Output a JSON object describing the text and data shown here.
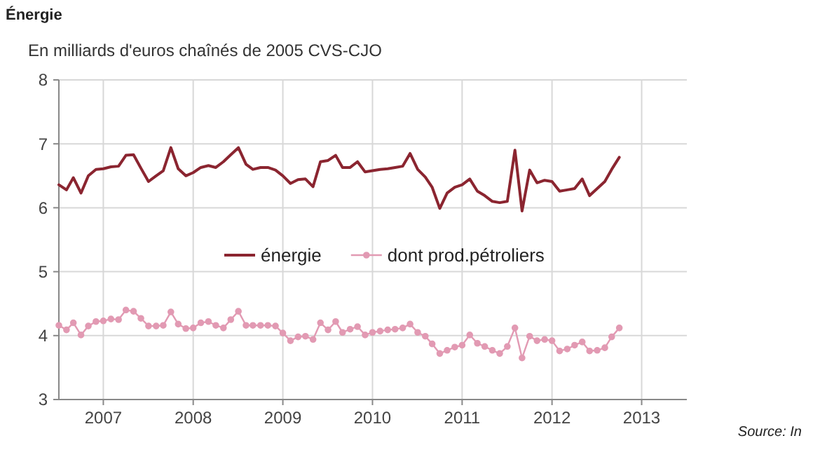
{
  "chart_data": {
    "type": "line",
    "title": "Énergie",
    "subtitle": "En milliards d'euros chaînés de 2005 CVS-CJO",
    "annotations": [
      "Source: In"
    ],
    "x": [
      "2007-01",
      "2007-02",
      "2007-03",
      "2007-04",
      "2007-05",
      "2007-06",
      "2007-07",
      "2007-08",
      "2007-09",
      "2007-10",
      "2007-11",
      "2007-12",
      "2008-01",
      "2008-02",
      "2008-03",
      "2008-04",
      "2008-05",
      "2008-06",
      "2008-07",
      "2008-08",
      "2008-09",
      "2008-10",
      "2008-11",
      "2008-12",
      "2009-01",
      "2009-02",
      "2009-03",
      "2009-04",
      "2009-05",
      "2009-06",
      "2009-07",
      "2009-08",
      "2009-09",
      "2009-10",
      "2009-11",
      "2009-12",
      "2010-01",
      "2010-02",
      "2010-03",
      "2010-04",
      "2010-05",
      "2010-06",
      "2010-07",
      "2010-08",
      "2010-09",
      "2010-10",
      "2010-11",
      "2010-12",
      "2011-01",
      "2011-02",
      "2011-03",
      "2011-04",
      "2011-05",
      "2011-06",
      "2011-07",
      "2011-08",
      "2011-09",
      "2011-10",
      "2011-11",
      "2011-12",
      "2012-01",
      "2012-02",
      "2012-03",
      "2012-04",
      "2012-05",
      "2012-06",
      "2012-07",
      "2012-08",
      "2012-09",
      "2012-10",
      "2012-11",
      "2012-12",
      "2013-01",
      "2013-02",
      "2013-03",
      "2013-04"
    ],
    "series": [
      {
        "name": "énergie",
        "color": "#8b2530",
        "marker": "none",
        "values": [
          6.36,
          6.28,
          6.47,
          6.23,
          6.5,
          6.6,
          6.61,
          6.64,
          6.65,
          6.82,
          6.83,
          6.62,
          6.41,
          6.5,
          6.58,
          6.94,
          6.61,
          6.5,
          6.55,
          6.63,
          6.66,
          6.63,
          6.72,
          6.83,
          6.94,
          6.68,
          6.6,
          6.63,
          6.63,
          6.59,
          6.5,
          6.38,
          6.44,
          6.45,
          6.33,
          6.72,
          6.74,
          6.82,
          6.63,
          6.63,
          6.72,
          6.56,
          6.58,
          6.6,
          6.61,
          6.63,
          6.65,
          6.85,
          6.6,
          6.48,
          6.32,
          5.99,
          6.23,
          6.32,
          6.36,
          6.45,
          6.26,
          6.19,
          6.1,
          6.08,
          6.1,
          6.9,
          5.95,
          6.59,
          6.39,
          6.43,
          6.41,
          6.26,
          6.28,
          6.3,
          6.45,
          6.19,
          6.3,
          6.41,
          6.6,
          6.79
        ]
      },
      {
        "name": "dont prod.pétroliers",
        "color": "#e29ab3",
        "marker": "circle",
        "values": [
          4.16,
          4.09,
          4.2,
          4.01,
          4.15,
          4.22,
          4.23,
          4.26,
          4.25,
          4.4,
          4.38,
          4.27,
          4.15,
          4.15,
          4.16,
          4.37,
          4.18,
          4.11,
          4.12,
          4.2,
          4.22,
          4.16,
          4.12,
          4.25,
          4.38,
          4.16,
          4.16,
          4.16,
          4.16,
          4.15,
          4.04,
          3.92,
          3.98,
          3.99,
          3.94,
          4.2,
          4.09,
          4.22,
          4.05,
          4.1,
          4.14,
          4.01,
          4.05,
          4.07,
          4.09,
          4.1,
          4.12,
          4.18,
          4.05,
          3.99,
          3.87,
          3.72,
          3.77,
          3.82,
          3.85,
          4.01,
          3.88,
          3.83,
          3.77,
          3.72,
          3.83,
          4.12,
          3.65,
          3.99,
          3.92,
          3.94,
          3.92,
          3.76,
          3.79,
          3.85,
          3.9,
          3.76,
          3.77,
          3.81,
          3.98,
          4.12
        ]
      }
    ],
    "xlim": [
      "2007-01",
      "2014-01"
    ],
    "xticks": [
      {
        "value": "2007-07",
        "label": "2007"
      },
      {
        "value": "2008-07",
        "label": "2008"
      },
      {
        "value": "2009-07",
        "label": "2009"
      },
      {
        "value": "2010-07",
        "label": "2010"
      },
      {
        "value": "2011-07",
        "label": "2011"
      },
      {
        "value": "2012-07",
        "label": "2012"
      },
      {
        "value": "2013-07",
        "label": "2013"
      }
    ],
    "ylim": [
      3,
      8
    ],
    "yticks": [
      3,
      4,
      5,
      6,
      7,
      8
    ],
    "grid": true,
    "legend": "center",
    "line_style": "solid"
  }
}
